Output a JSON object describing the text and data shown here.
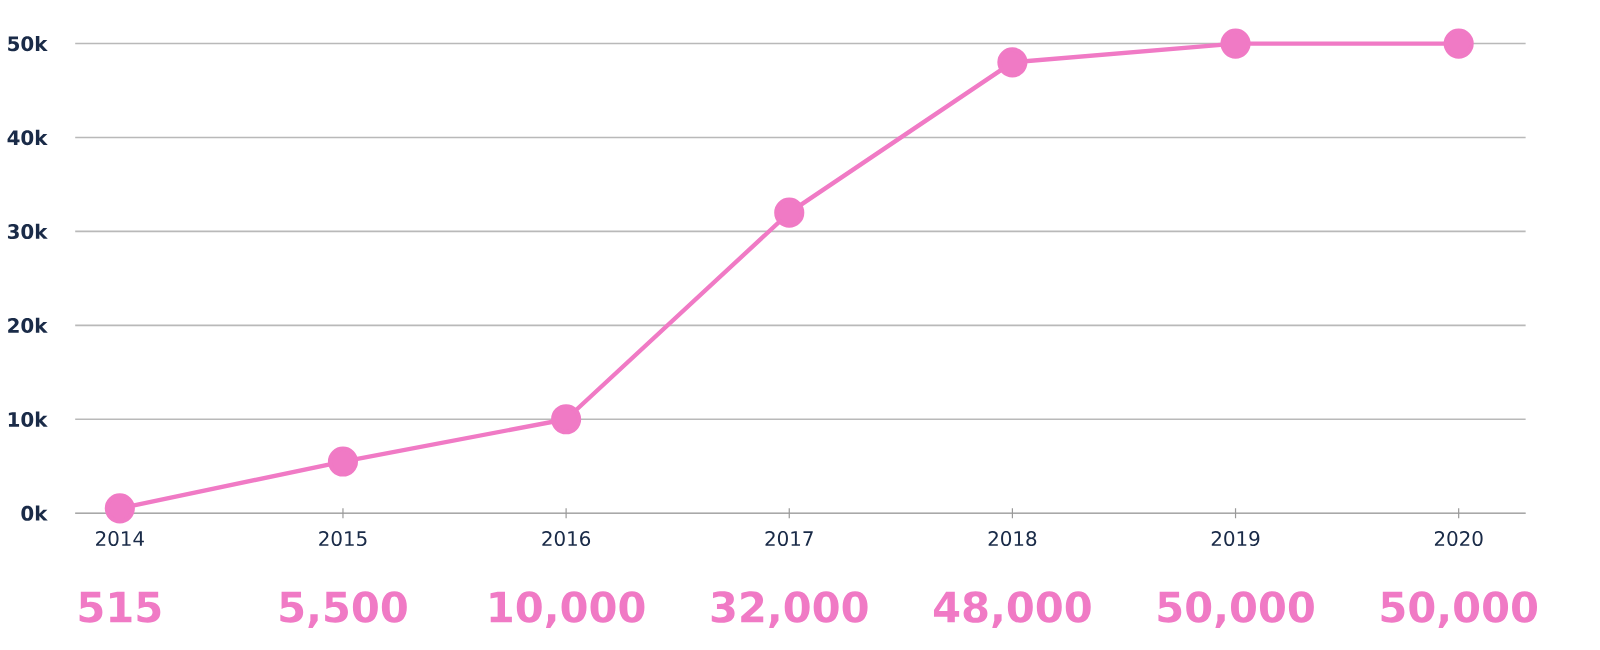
{
  "chart_data": {
    "type": "line",
    "categories": [
      "2014",
      "2015",
      "2016",
      "2017",
      "2018",
      "2019",
      "2020"
    ],
    "values": [
      515,
      5500,
      10000,
      32000,
      48000,
      50000,
      50000
    ],
    "value_labels": [
      "515",
      "5,500",
      "10,000",
      "32,000",
      "48,000",
      "50,000",
      "50,000"
    ],
    "color": "#f07ac5",
    "ylim": [
      0,
      50000
    ],
    "yticks": [
      {
        "value": 0,
        "label": "0k"
      },
      {
        "value": 10000,
        "label": "10k"
      },
      {
        "value": 20000,
        "label": "20k"
      },
      {
        "value": 30000,
        "label": "30k"
      },
      {
        "value": 40000,
        "label": "40k"
      },
      {
        "value": 50000,
        "label": "50k"
      }
    ],
    "grid": "y",
    "marker": "circle"
  }
}
